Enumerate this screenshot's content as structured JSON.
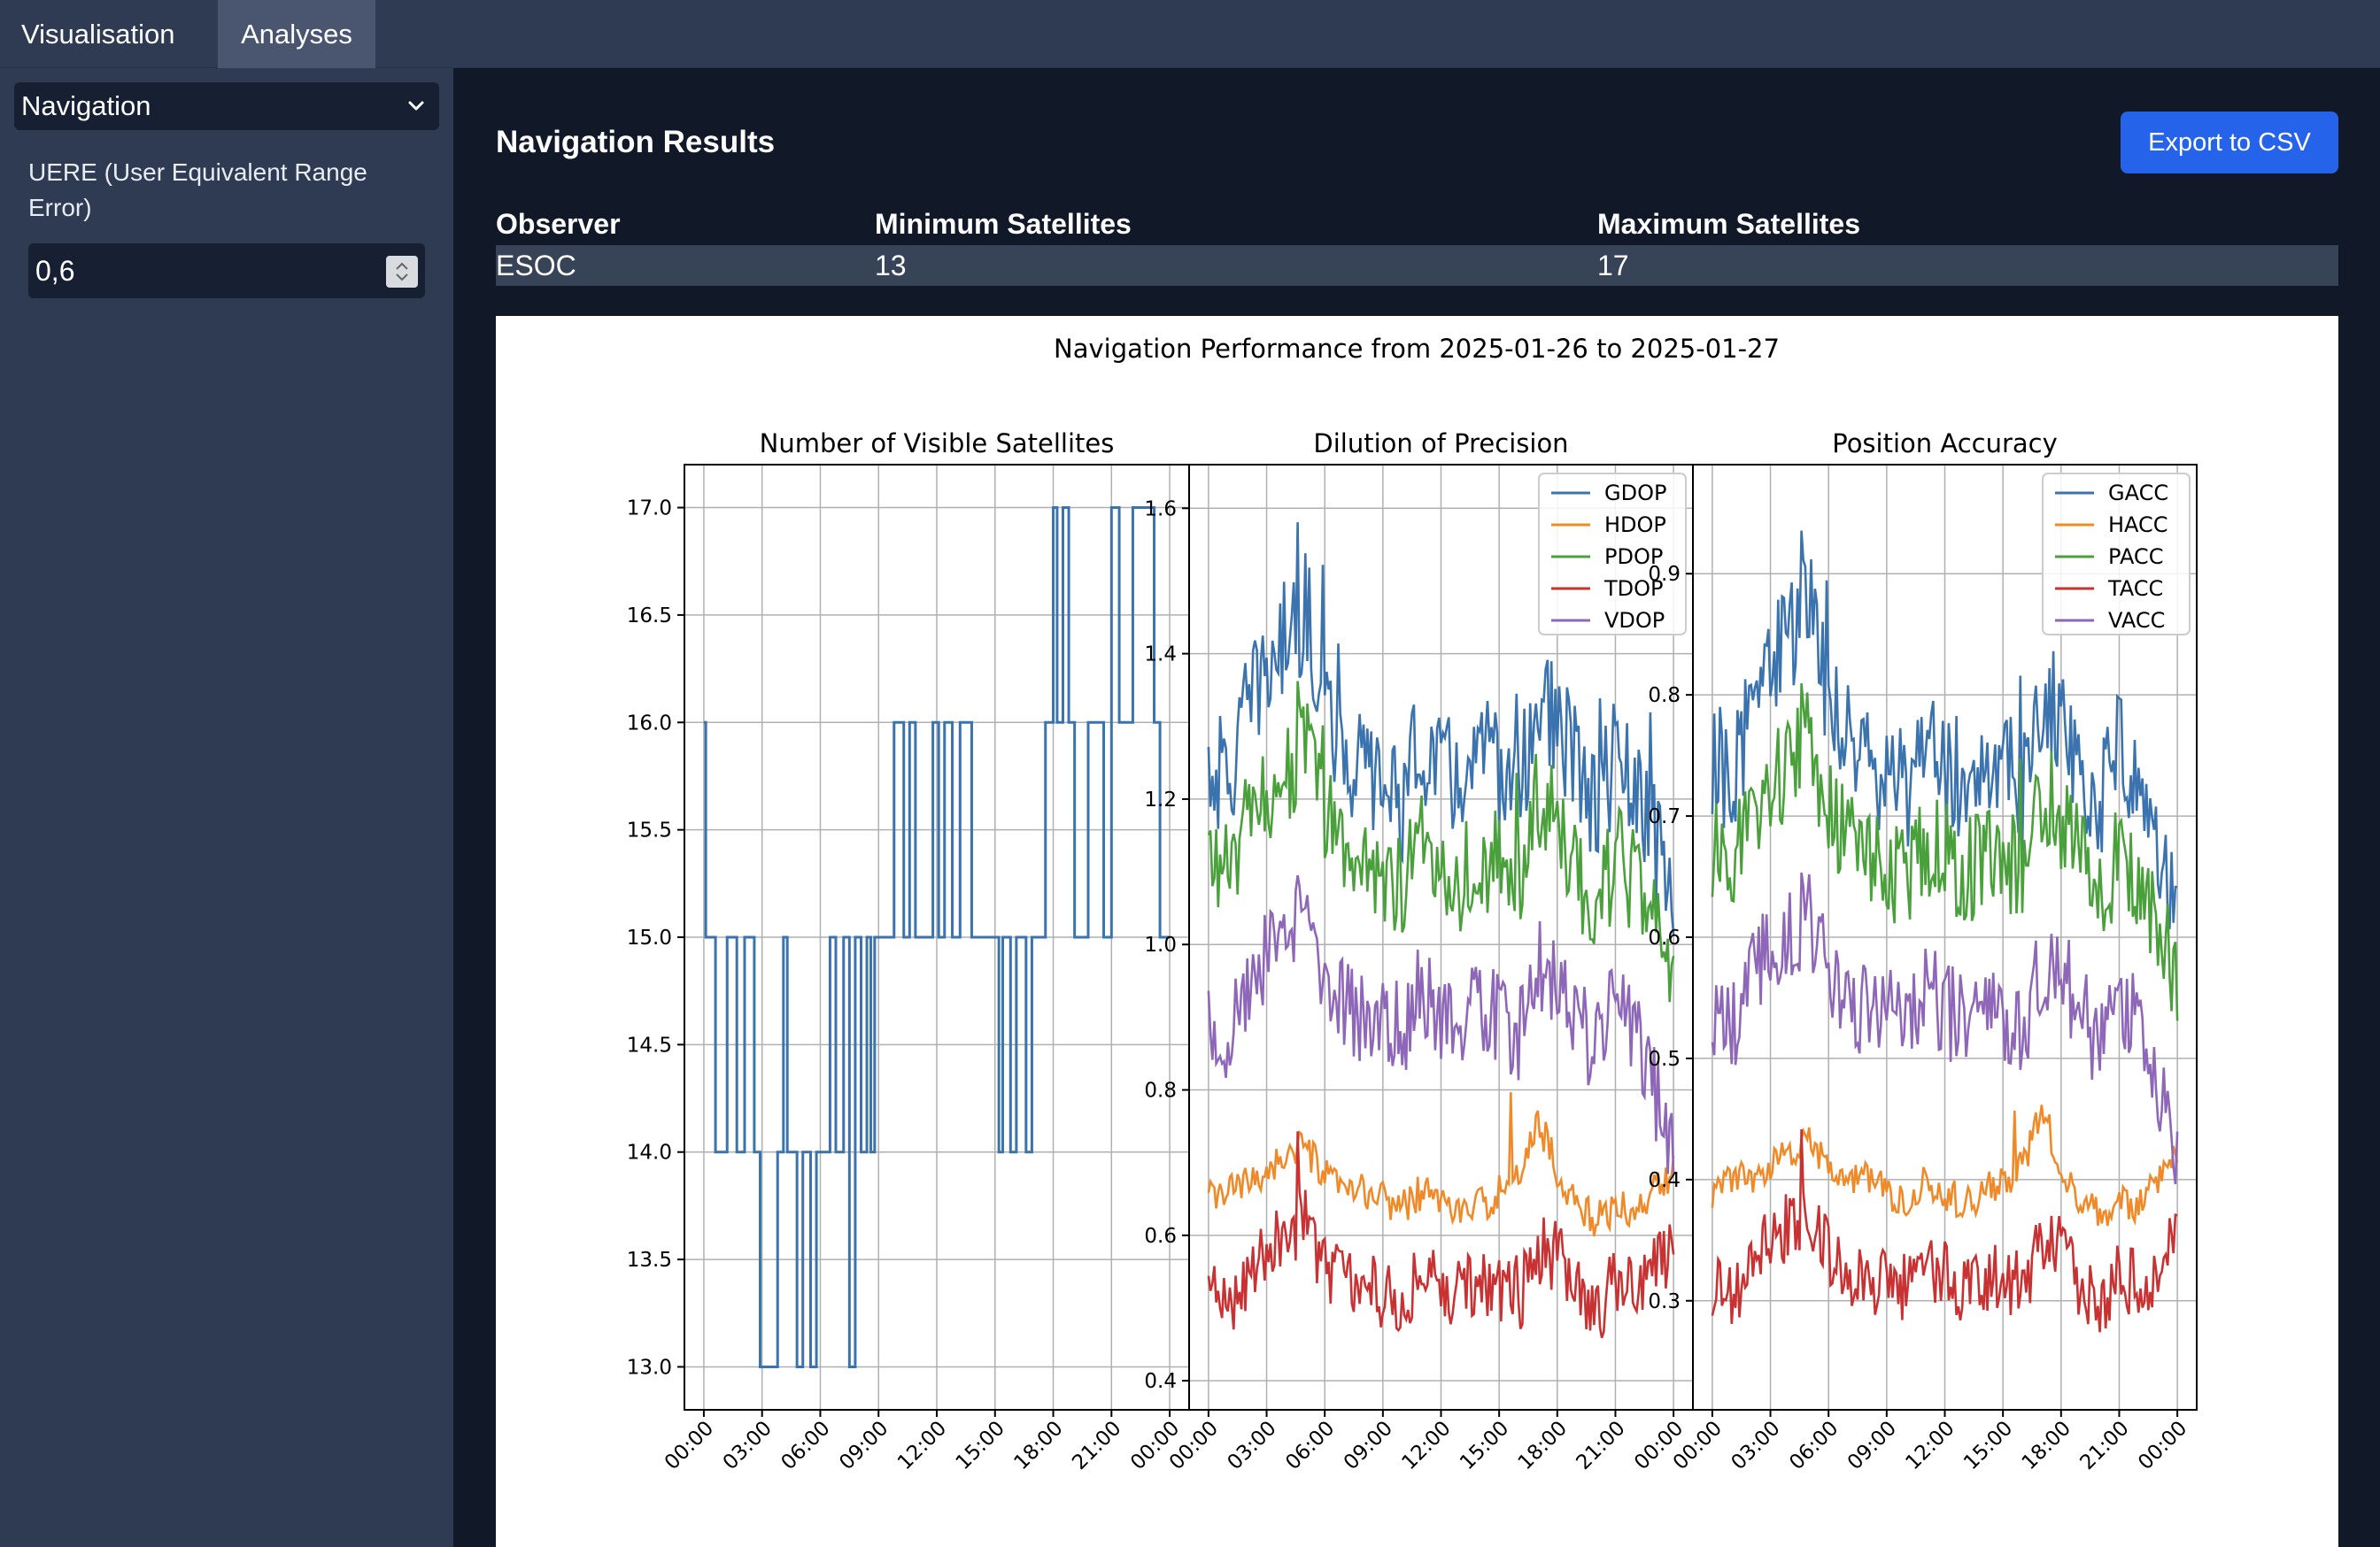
{
  "tabs": [
    {
      "label": "Visualisation",
      "active": false
    },
    {
      "label": "Analyses",
      "active": true
    }
  ],
  "sidebar": {
    "analysis_select": "Navigation",
    "uere_label": "UERE (User Equivalent Range Error)",
    "uere_value": "0,6"
  },
  "main": {
    "title": "Navigation Results",
    "export_label": "Export to CSV",
    "table": {
      "headers": [
        "Observer",
        "Minimum Satellites",
        "Maximum Satellites"
      ],
      "row": [
        "ESOC",
        "13",
        "17"
      ]
    }
  },
  "chart_data": {
    "suptitle": "Navigation Performance from 2025-01-26 to 2025-01-27",
    "x_ticks": [
      "00:00",
      "03:00",
      "06:00",
      "09:00",
      "12:00",
      "15:00",
      "18:00",
      "21:00",
      "00:00"
    ],
    "panels": [
      {
        "type": "line",
        "step": true,
        "title": "Number of Visible Satellites",
        "ylim": [
          12.8,
          17.2
        ],
        "y_ticks": [
          "13.0",
          "13.5",
          "14.0",
          "14.5",
          "15.0",
          "15.5",
          "16.0",
          "16.5",
          "17.0"
        ],
        "grid": true,
        "series": [
          {
            "color": "#3a73ad",
            "points": [
              [
                0,
                16
              ],
              [
                0.05,
                15
              ],
              [
                0.3,
                14
              ],
              [
                0.6,
                15
              ],
              [
                0.85,
                14
              ],
              [
                1.05,
                15
              ],
              [
                1.3,
                14
              ],
              [
                1.45,
                13
              ],
              [
                1.9,
                14
              ],
              [
                2.05,
                15
              ],
              [
                2.15,
                14
              ],
              [
                2.4,
                13
              ],
              [
                2.55,
                14
              ],
              [
                2.75,
                13
              ],
              [
                2.9,
                14
              ],
              [
                3.05,
                14
              ],
              [
                3.25,
                15
              ],
              [
                3.4,
                14
              ],
              [
                3.6,
                15
              ],
              [
                3.75,
                13
              ],
              [
                3.9,
                15
              ],
              [
                4.05,
                14
              ],
              [
                4.2,
                15
              ],
              [
                4.3,
                14
              ],
              [
                4.4,
                15
              ],
              [
                4.9,
                16
              ],
              [
                5.15,
                15
              ],
              [
                5.3,
                16
              ],
              [
                5.45,
                15
              ],
              [
                5.9,
                16
              ],
              [
                6.05,
                15
              ],
              [
                6.2,
                16
              ],
              [
                6.4,
                15
              ],
              [
                6.6,
                16
              ],
              [
                6.9,
                15
              ],
              [
                7.3,
                15
              ],
              [
                7.5,
                15
              ],
              [
                7.6,
                14
              ],
              [
                7.7,
                15
              ],
              [
                7.9,
                14
              ],
              [
                8.05,
                15
              ],
              [
                8.3,
                14
              ],
              [
                8.45,
                15
              ],
              [
                8.8,
                16
              ],
              [
                9.0,
                17
              ],
              [
                9.1,
                16
              ],
              [
                9.25,
                17
              ],
              [
                9.4,
                16
              ],
              [
                9.55,
                15
              ],
              [
                9.9,
                16
              ],
              [
                10.3,
                15
              ],
              [
                10.5,
                17
              ],
              [
                10.7,
                16
              ],
              [
                11.05,
                17
              ],
              [
                11.6,
                16
              ],
              [
                11.75,
                15
              ],
              [
                11.95,
                15
              ]
            ]
          }
        ]
      },
      {
        "type": "line",
        "title": "Dilution of Precision",
        "ylim": [
          0.36,
          1.66
        ],
        "y_ticks": [
          "0.4",
          "0.6",
          "0.8",
          "1.0",
          "1.2",
          "1.4",
          "1.6"
        ],
        "grid": true,
        "legend": "top-right",
        "series": [
          {
            "name": "GDOP",
            "color": "#3a73ad",
            "base": [
              1.25,
              1.22,
              1.32,
              1.38,
              1.42,
              1.46,
              1.33,
              1.26,
              1.24,
              1.22,
              1.2,
              1.28,
              1.24,
              1.22,
              1.26,
              1.24,
              1.2,
              1.34,
              1.3,
              1.24,
              1.18,
              1.26,
              1.2,
              1.14
            ],
            "amp": 0.085,
            "peaks": [
              [
                4.6,
                0.18
              ],
              [
                5.9,
                0.26
              ],
              [
                6.7,
                0.2
              ],
              [
                15.9,
                0.2
              ],
              [
                20.2,
                0.16
              ],
              [
                22.8,
                0.16
              ]
            ]
          },
          {
            "name": "HDOP",
            "color": "#f08a28",
            "base": [
              0.65,
              0.66,
              0.67,
              0.69,
              0.71,
              0.72,
              0.68,
              0.66,
              0.66,
              0.65,
              0.64,
              0.66,
              0.65,
              0.63,
              0.64,
              0.66,
              0.68,
              0.76,
              0.69,
              0.64,
              0.62,
              0.64,
              0.63,
              0.66
            ],
            "amp": 0.025,
            "peaks": [
              [
                15.6,
                0.1
              ]
            ]
          },
          {
            "name": "PDOP",
            "color": "#4aa13c",
            "base": [
              1.12,
              1.1,
              1.16,
              1.2,
              1.24,
              1.27,
              1.18,
              1.13,
              1.11,
              1.1,
              1.08,
              1.14,
              1.11,
              1.09,
              1.12,
              1.11,
              1.08,
              1.2,
              1.16,
              1.1,
              1.05,
              1.12,
              1.08,
              1.02
            ],
            "amp": 0.075,
            "peaks": [
              [
                4.6,
                0.14
              ],
              [
                5.9,
                0.16
              ],
              [
                15.9,
                0.14
              ]
            ]
          },
          {
            "name": "TDOP",
            "color": "#c83232",
            "base": [
              0.52,
              0.5,
              0.55,
              0.58,
              0.61,
              0.62,
              0.56,
              0.54,
              0.53,
              0.52,
              0.51,
              0.55,
              0.53,
              0.52,
              0.54,
              0.53,
              0.51,
              0.58,
              0.57,
              0.52,
              0.5,
              0.53,
              0.52,
              0.55
            ],
            "amp": 0.05,
            "peaks": [
              [
                4.6,
                0.1
              ],
              [
                15.9,
                0.08
              ]
            ]
          },
          {
            "name": "VDOP",
            "color": "#8e67b8",
            "base": [
              0.9,
              0.87,
              0.95,
              0.98,
              1.0,
              1.04,
              0.96,
              0.92,
              0.9,
              0.9,
              0.88,
              0.94,
              0.9,
              0.88,
              0.92,
              0.9,
              0.87,
              0.97,
              0.95,
              0.9,
              0.85,
              0.92,
              0.88,
              0.8
            ],
            "amp": 0.065,
            "peaks": [
              [
                4.6,
                0.1
              ],
              [
                15.9,
                0.08
              ]
            ]
          }
        ]
      },
      {
        "type": "line",
        "title": "Position Accuracy",
        "ylim": [
          0.21,
          0.99
        ],
        "y_ticks": [
          "0.3",
          "0.4",
          "0.5",
          "0.6",
          "0.7",
          "0.8",
          "0.9"
        ],
        "grid": true,
        "legend": "top-right",
        "series": [
          {
            "name": "GACC",
            "color": "#3a73ad",
            "base": [
              0.75,
              0.73,
              0.79,
              0.83,
              0.85,
              0.87,
              0.8,
              0.76,
              0.74,
              0.73,
              0.72,
              0.77,
              0.74,
              0.73,
              0.76,
              0.74,
              0.72,
              0.8,
              0.78,
              0.74,
              0.71,
              0.76,
              0.72,
              0.68
            ],
            "amp": 0.05,
            "peaks": [
              [
                4.6,
                0.1
              ],
              [
                5.9,
                0.12
              ],
              [
                15.9,
                0.12
              ]
            ]
          },
          {
            "name": "HACC",
            "color": "#f08a28",
            "base": [
              0.39,
              0.4,
              0.4,
              0.41,
              0.42,
              0.43,
              0.41,
              0.4,
              0.4,
              0.39,
              0.38,
              0.4,
              0.39,
              0.38,
              0.39,
              0.4,
              0.41,
              0.46,
              0.41,
              0.38,
              0.37,
              0.38,
              0.38,
              0.4
            ],
            "amp": 0.015,
            "peaks": [
              [
                15.6,
                0.06
              ]
            ]
          },
          {
            "name": "PACC",
            "color": "#4aa13c",
            "base": [
              0.67,
              0.66,
              0.7,
              0.72,
              0.74,
              0.76,
              0.71,
              0.68,
              0.67,
              0.66,
              0.65,
              0.68,
              0.67,
              0.65,
              0.67,
              0.67,
              0.65,
              0.72,
              0.7,
              0.66,
              0.63,
              0.67,
              0.65,
              0.61
            ],
            "amp": 0.045,
            "peaks": [
              [
                4.6,
                0.08
              ],
              [
                15.9,
                0.08
              ]
            ]
          },
          {
            "name": "TACC",
            "color": "#c83232",
            "base": [
              0.31,
              0.3,
              0.33,
              0.35,
              0.36,
              0.37,
              0.34,
              0.32,
              0.32,
              0.31,
              0.31,
              0.33,
              0.32,
              0.31,
              0.32,
              0.32,
              0.31,
              0.35,
              0.34,
              0.31,
              0.3,
              0.32,
              0.31,
              0.33
            ],
            "amp": 0.03,
            "peaks": [
              [
                4.6,
                0.06
              ]
            ]
          },
          {
            "name": "VACC",
            "color": "#8e67b8",
            "base": [
              0.54,
              0.52,
              0.57,
              0.59,
              0.6,
              0.62,
              0.57,
              0.55,
              0.54,
              0.54,
              0.53,
              0.56,
              0.54,
              0.53,
              0.55,
              0.54,
              0.52,
              0.58,
              0.57,
              0.54,
              0.51,
              0.55,
              0.53,
              0.48
            ],
            "amp": 0.04,
            "peaks": [
              [
                4.6,
                0.06
              ]
            ]
          }
        ]
      }
    ]
  }
}
